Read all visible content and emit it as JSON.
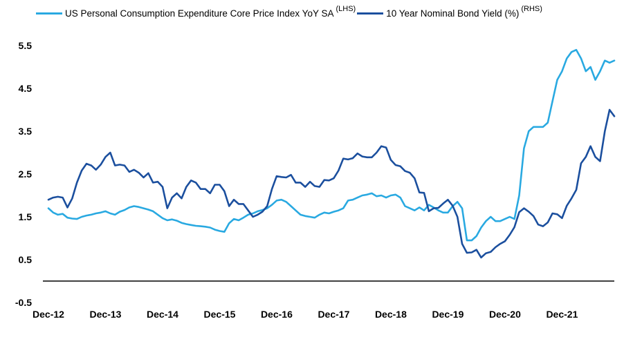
{
  "legend": {
    "series1_label": "US Personal Consumption Expenditure Core Price Index YoY SA",
    "series1_axis_tag": "(LHS)",
    "series2_label": "10 Year Nominal Bond Yield (%)",
    "series2_axis_tag": "(RHS)"
  },
  "chart_data": {
    "type": "line",
    "title": "",
    "xlabel": "",
    "ylabel": "",
    "frequency": "monthly",
    "x_range": [
      "Dec-12",
      "Nov-22"
    ],
    "x_labels": [
      "Dec-12",
      "Dec-13",
      "Dec-14",
      "Dec-15",
      "Dec-16",
      "Dec-17",
      "Dec-18",
      "Dec-19",
      "Dec-20",
      "Dec-21"
    ],
    "x_label_indices": [
      0,
      12,
      24,
      36,
      48,
      60,
      72,
      84,
      96,
      108
    ],
    "y_ticks": [
      -0.5,
      0.5,
      1.5,
      2.5,
      3.5,
      4.5,
      5.5
    ],
    "ylim": [
      -0.5,
      5.5
    ],
    "grid": false,
    "legend_position": "top",
    "series": [
      {
        "name": "US Personal Consumption Expenditure Core Price Index YoY SA",
        "axis_tag": "(LHS)",
        "color": "#29a9e1",
        "values": [
          1.7,
          1.6,
          1.55,
          1.57,
          1.48,
          1.46,
          1.45,
          1.5,
          1.53,
          1.55,
          1.58,
          1.6,
          1.63,
          1.58,
          1.55,
          1.62,
          1.66,
          1.72,
          1.75,
          1.73,
          1.7,
          1.67,
          1.63,
          1.55,
          1.47,
          1.42,
          1.44,
          1.41,
          1.36,
          1.33,
          1.31,
          1.29,
          1.28,
          1.27,
          1.25,
          1.2,
          1.17,
          1.15,
          1.35,
          1.45,
          1.42,
          1.48,
          1.55,
          1.58,
          1.63,
          1.66,
          1.7,
          1.78,
          1.88,
          1.9,
          1.85,
          1.75,
          1.65,
          1.55,
          1.52,
          1.5,
          1.48,
          1.55,
          1.6,
          1.58,
          1.62,
          1.65,
          1.7,
          1.88,
          1.9,
          1.95,
          2.0,
          2.02,
          2.05,
          1.98,
          2.0,
          1.95,
          2.0,
          2.02,
          1.95,
          1.75,
          1.7,
          1.65,
          1.72,
          1.65,
          1.78,
          1.72,
          1.65,
          1.6,
          1.6,
          1.75,
          1.85,
          1.7,
          0.95,
          0.95,
          1.05,
          1.25,
          1.4,
          1.5,
          1.4,
          1.4,
          1.45,
          1.5,
          1.45,
          2.0,
          3.1,
          3.5,
          3.6,
          3.6,
          3.6,
          3.7,
          4.2,
          4.7,
          4.9,
          5.2,
          5.35,
          5.4,
          5.2,
          4.9,
          5.0,
          4.7,
          4.9,
          5.15,
          5.1,
          5.15
        ]
      },
      {
        "name": "10 Year Nominal Bond Yield (%)",
        "axis_tag": "(RHS)",
        "color": "#1b4f9e",
        "values": [
          1.9,
          1.95,
          1.97,
          1.95,
          1.72,
          1.93,
          2.3,
          2.58,
          2.74,
          2.7,
          2.6,
          2.72,
          2.9,
          3.0,
          2.7,
          2.72,
          2.7,
          2.55,
          2.6,
          2.53,
          2.42,
          2.52,
          2.3,
          2.32,
          2.2,
          1.7,
          1.95,
          2.05,
          1.93,
          2.2,
          2.35,
          2.3,
          2.15,
          2.15,
          2.05,
          2.25,
          2.25,
          2.1,
          1.75,
          1.9,
          1.8,
          1.8,
          1.65,
          1.5,
          1.55,
          1.62,
          1.75,
          2.15,
          2.45,
          2.43,
          2.42,
          2.48,
          2.3,
          2.3,
          2.2,
          2.32,
          2.22,
          2.2,
          2.36,
          2.35,
          2.4,
          2.58,
          2.86,
          2.84,
          2.87,
          2.98,
          2.91,
          2.89,
          2.89,
          3.0,
          3.15,
          3.12,
          2.83,
          2.71,
          2.68,
          2.57,
          2.53,
          2.4,
          2.07,
          2.06,
          1.63,
          1.7,
          1.71,
          1.81,
          1.9,
          1.76,
          1.5,
          0.87,
          0.66,
          0.67,
          0.73,
          0.55,
          0.65,
          0.68,
          0.79,
          0.87,
          0.93,
          1.08,
          1.26,
          1.61,
          1.7,
          1.62,
          1.52,
          1.32,
          1.28,
          1.37,
          1.58,
          1.56,
          1.47,
          1.76,
          1.93,
          2.13,
          2.75,
          2.9,
          3.15,
          2.9,
          2.8,
          3.5,
          4.0,
          3.85
        ]
      }
    ]
  }
}
